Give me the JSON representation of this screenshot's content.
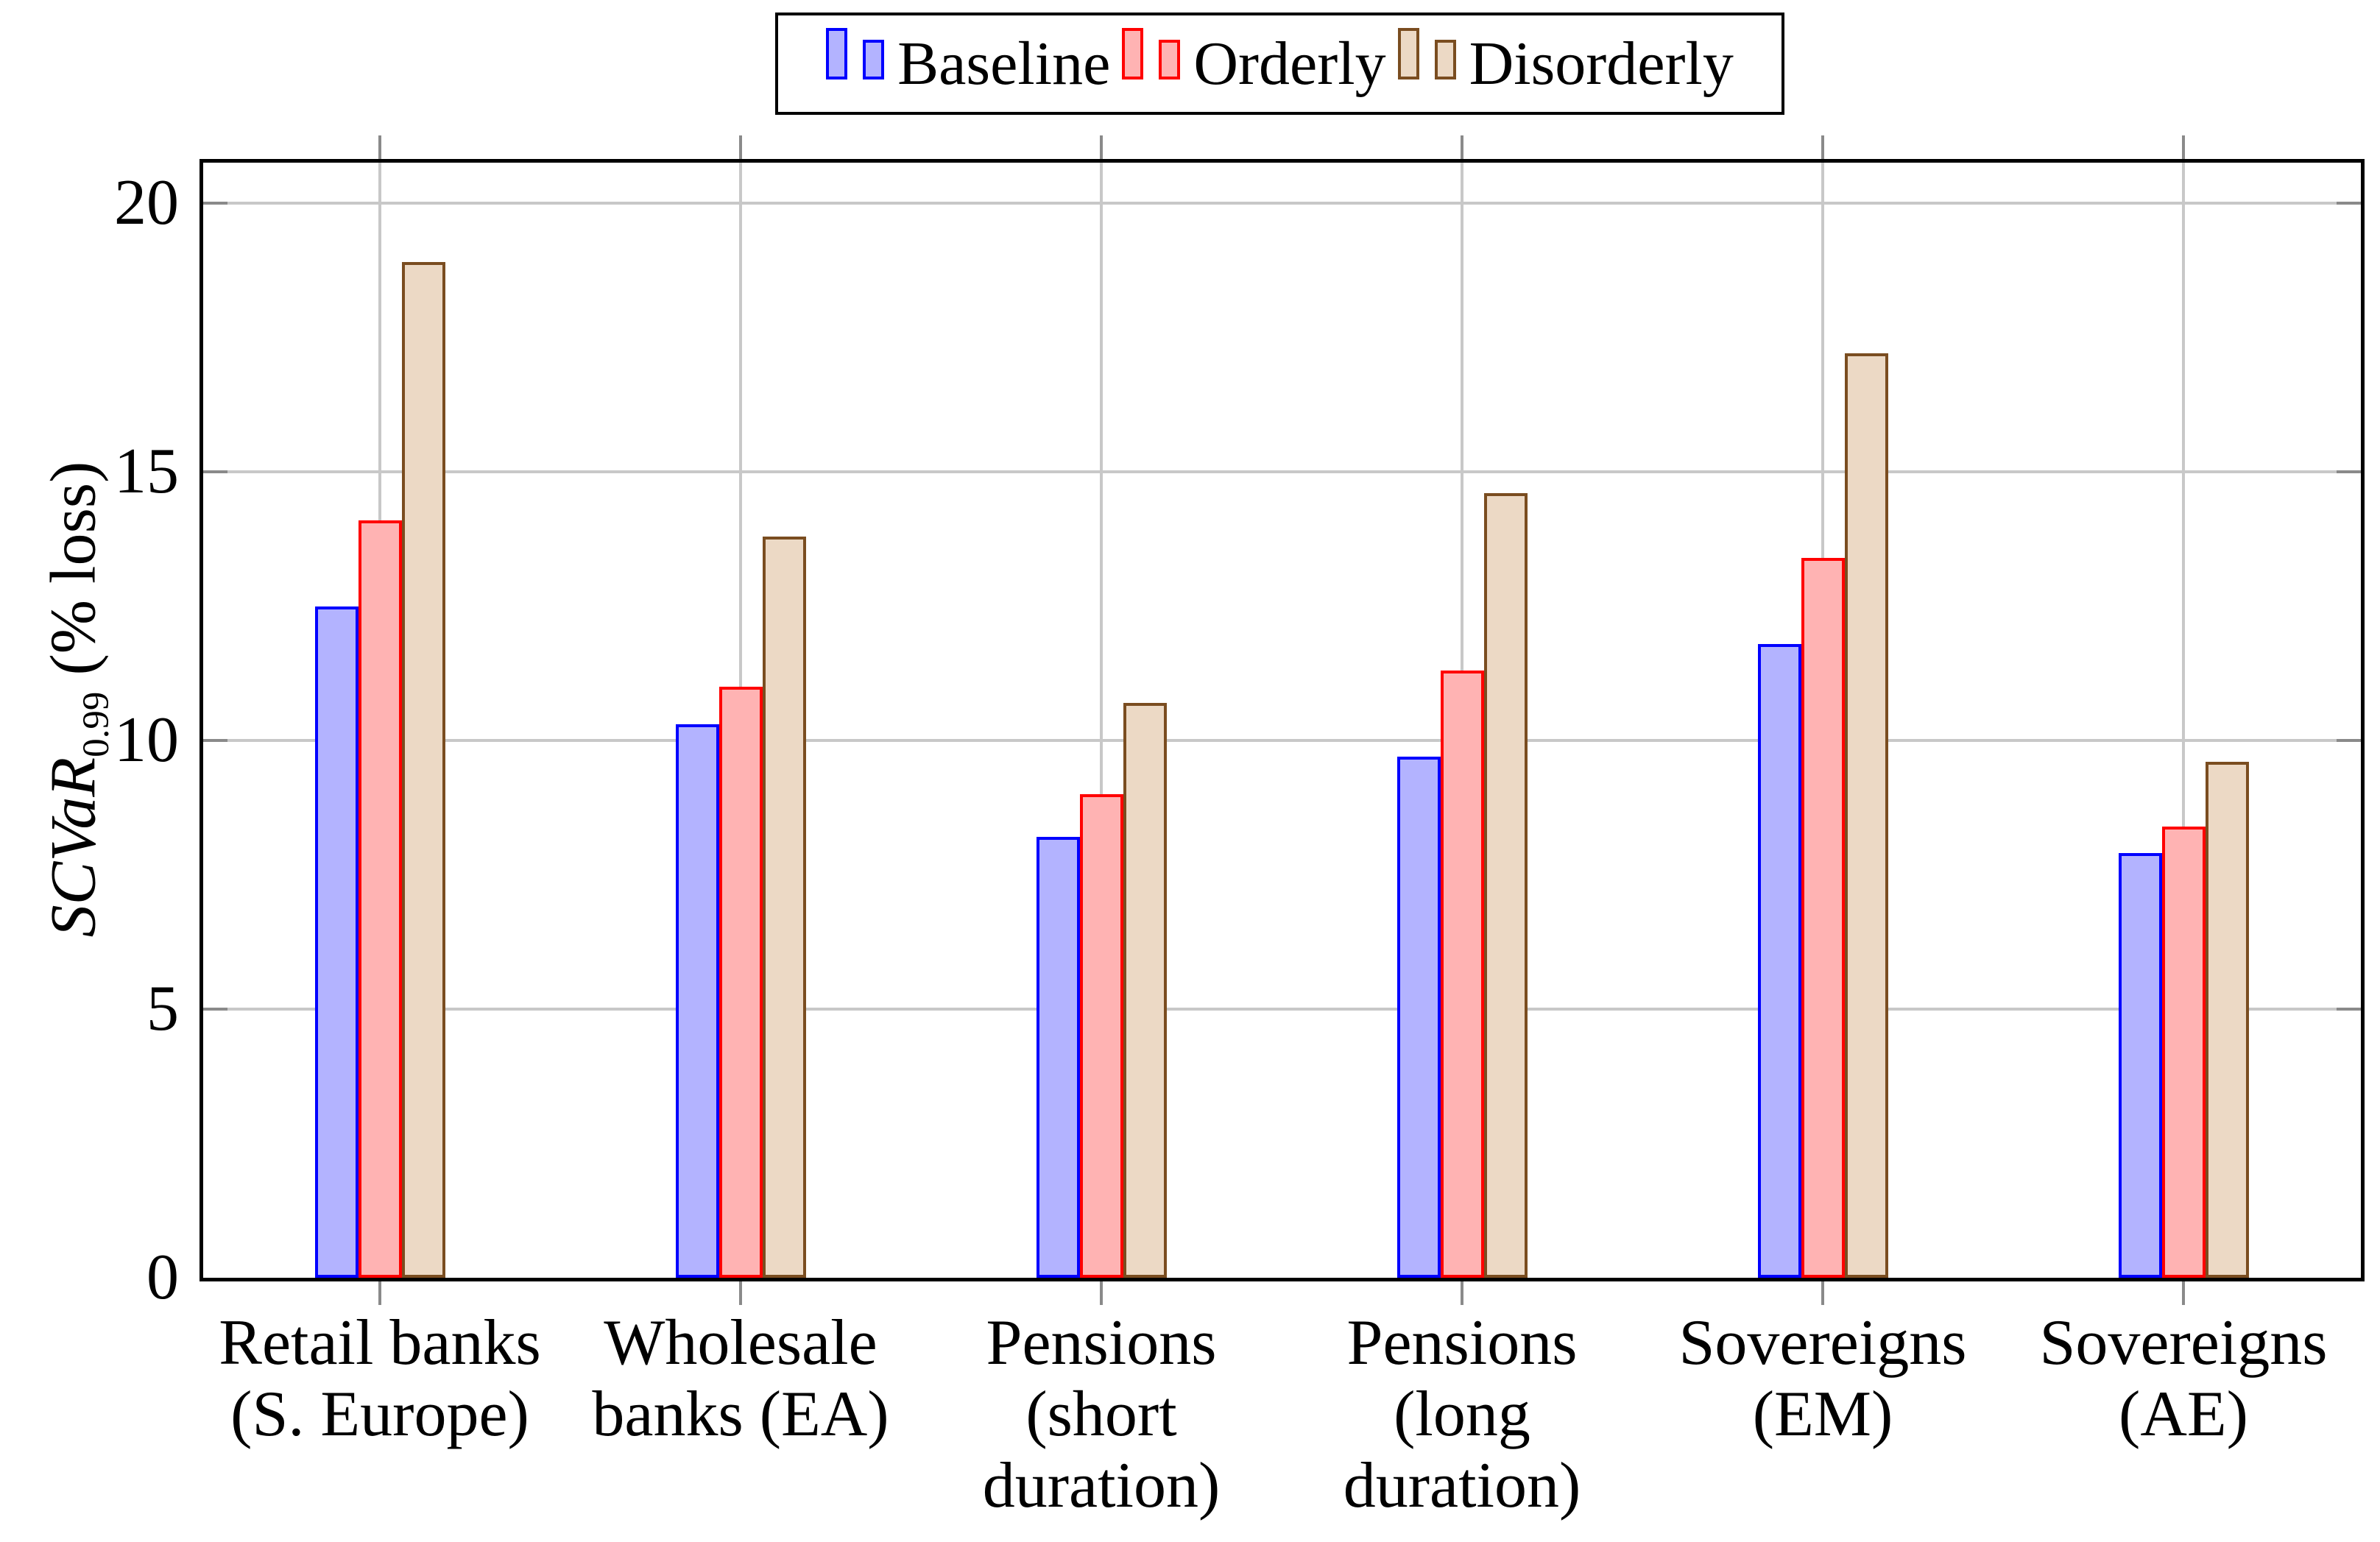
{
  "legend": {
    "items": [
      {
        "label": "Baseline",
        "fill": "#b3b3ff",
        "stroke": "#0000ff"
      },
      {
        "label": "Orderly",
        "fill": "#ffb3b3",
        "stroke": "#ff0000"
      },
      {
        "label": "Disorderly",
        "fill": "#ecd9c5",
        "stroke": "#7a4d20"
      }
    ]
  },
  "ylabel": {
    "variable": "SCVaR",
    "subscript": "0.99",
    "unit": " (% loss)"
  },
  "style": {
    "gridline_color": "#c8c8c8",
    "tick_color": "#8a8a8a",
    "axis_color": "#000000",
    "background": "#ffffff"
  },
  "chart_data": {
    "type": "bar",
    "title": "",
    "xlabel": "",
    "ylabel": "SCVaR_0.99 (% loss)",
    "categories": [
      "Retail banks\n(S. Europe)",
      "Wholesale\nbanks (EA)",
      "Pensions\n(short\nduration)",
      "Pensions\n(long\nduration)",
      "Sovereigns\n(EM)",
      "Sovereigns\n(AE)"
    ],
    "series": [
      {
        "name": "Baseline",
        "values": [
          12.5,
          10.3,
          8.2,
          9.7,
          11.8,
          7.9
        ]
      },
      {
        "name": "Orderly",
        "values": [
          14.1,
          11.0,
          9.0,
          11.3,
          13.4,
          8.4
        ]
      },
      {
        "name": "Disorderly",
        "values": [
          18.9,
          13.8,
          10.7,
          14.6,
          17.2,
          9.6
        ]
      }
    ],
    "yticks": [
      0,
      5,
      10,
      15,
      20
    ],
    "ylim": [
      0,
      20.8
    ],
    "grid": true,
    "legend_position": "top center"
  }
}
